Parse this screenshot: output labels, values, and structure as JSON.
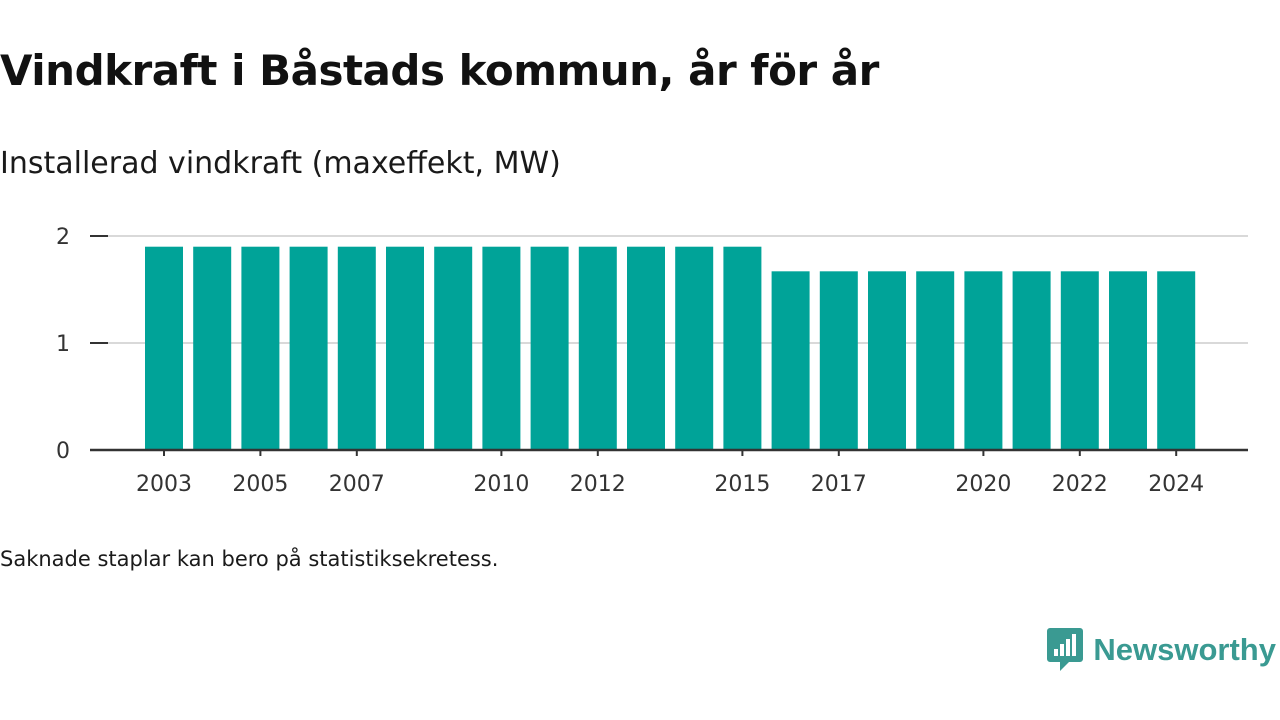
{
  "title": "Vindkraft i Båstads kommun, år för år",
  "subtitle": "Installerad vindkraft (maxeffekt, MW)",
  "note": "Saknade staplar kan bero på statistiksekretess.",
  "brand": {
    "name": "Newsworthy",
    "icon": "newsworthy-logo-icon",
    "color": "#3a9a92"
  },
  "colors": {
    "bar": "#00a398",
    "grid": "#d9d9d9",
    "axis": "#333333"
  },
  "chart_data": {
    "type": "bar",
    "categories": [
      "2003",
      "2004",
      "2005",
      "2006",
      "2007",
      "2008",
      "2009",
      "2010",
      "2011",
      "2012",
      "2013",
      "2014",
      "2015",
      "2016",
      "2017",
      "2018",
      "2019",
      "2020",
      "2021",
      "2022",
      "2023",
      "2024"
    ],
    "values": [
      1.9,
      1.9,
      1.9,
      1.9,
      1.9,
      1.9,
      1.9,
      1.9,
      1.9,
      1.9,
      1.9,
      1.9,
      1.9,
      1.67,
      1.67,
      1.67,
      1.67,
      1.67,
      1.67,
      1.67,
      1.67,
      1.67
    ],
    "x_tick_labels": [
      "2003",
      "2005",
      "2007",
      "2010",
      "2012",
      "2015",
      "2017",
      "2020",
      "2022",
      "2024"
    ],
    "y_ticks": [
      0,
      1,
      2
    ],
    "ylim": [
      0,
      2
    ],
    "xlabel": "",
    "ylabel": "",
    "grid": true,
    "legend": "none"
  }
}
